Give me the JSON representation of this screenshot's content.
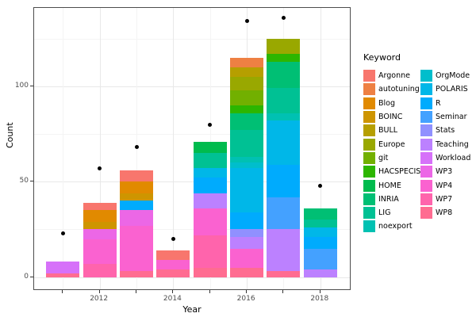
{
  "chart_data": {
    "type": "bar",
    "stacked": true,
    "xlabel": "Year",
    "ylabel": "Count",
    "legend_title": "Keyword",
    "legend_position": "right",
    "grid": true,
    "ylim": [
      0,
      145
    ],
    "y_ticks": [
      0,
      50,
      100
    ],
    "y_minor_ticks": [
      25,
      75,
      125
    ],
    "x_years": [
      2011,
      2012,
      2013,
      2014,
      2015,
      2016,
      2017,
      2018
    ],
    "x_labeled_years": [
      2012,
      2014,
      2016,
      2018
    ],
    "keywords": [
      {
        "name": "Argonne",
        "color": "#F8766D"
      },
      {
        "name": "autotuning",
        "color": "#EE8043"
      },
      {
        "name": "Blog",
        "color": "#E18A00"
      },
      {
        "name": "BOINC",
        "color": "#CE9500"
      },
      {
        "name": "BULL",
        "color": "#B69F00"
      },
      {
        "name": "Europe",
        "color": "#99A800"
      },
      {
        "name": "git",
        "color": "#72B000"
      },
      {
        "name": "HACSPECIS",
        "color": "#2CB600"
      },
      {
        "name": "HOME",
        "color": "#00BB4E"
      },
      {
        "name": "INRIA",
        "color": "#00BF74"
      },
      {
        "name": "LIG",
        "color": "#00C194"
      },
      {
        "name": "noexport",
        "color": "#00C1B2"
      },
      {
        "name": "OrgMode",
        "color": "#00BECC"
      },
      {
        "name": "POLARIS",
        "color": "#00B7E8"
      },
      {
        "name": "R",
        "color": "#00ABFD"
      },
      {
        "name": "Seminar",
        "color": "#44A1FF"
      },
      {
        "name": "Stats",
        "color": "#9090FF"
      },
      {
        "name": "Teaching",
        "color": "#BC81FF"
      },
      {
        "name": "Workload",
        "color": "#D671F9"
      },
      {
        "name": "WP3",
        "color": "#EC67E6"
      },
      {
        "name": "WP4",
        "color": "#FA62D0"
      },
      {
        "name": "WP7",
        "color": "#FF64AC"
      },
      {
        "name": "WP8",
        "color": "#FF6C91"
      }
    ],
    "legend_column_split": 12,
    "bars": [
      {
        "year": 2011,
        "total": 8,
        "segments": [
          {
            "keyword": "WP8",
            "value": 2
          },
          {
            "keyword": "Workload",
            "value": 6
          }
        ]
      },
      {
        "year": 2012,
        "total": 39,
        "segments": [
          {
            "keyword": "WP7",
            "value": 7
          },
          {
            "keyword": "WP4",
            "value": 13
          },
          {
            "keyword": "WP3",
            "value": 5
          },
          {
            "keyword": "BOINC",
            "value": 4
          },
          {
            "keyword": "Blog",
            "value": 6
          },
          {
            "keyword": "Argonne",
            "value": 4
          }
        ]
      },
      {
        "year": 2013,
        "total": 56,
        "segments": [
          {
            "keyword": "WP8",
            "value": 3
          },
          {
            "keyword": "WP4",
            "value": 24
          },
          {
            "keyword": "WP3",
            "value": 8
          },
          {
            "keyword": "R",
            "value": 5
          },
          {
            "keyword": "BOINC",
            "value": 4
          },
          {
            "keyword": "Blog",
            "value": 6
          },
          {
            "keyword": "Argonne",
            "value": 6
          }
        ]
      },
      {
        "year": 2014,
        "total": 14,
        "segments": [
          {
            "keyword": "WP8",
            "value": 4
          },
          {
            "keyword": "WP4",
            "value": 5
          },
          {
            "keyword": "Argonne",
            "value": 5
          }
        ]
      },
      {
        "year": 2015,
        "total": 71,
        "segments": [
          {
            "keyword": "WP8",
            "value": 5
          },
          {
            "keyword": "WP7",
            "value": 17
          },
          {
            "keyword": "WP4",
            "value": 14
          },
          {
            "keyword": "Teaching",
            "value": 8
          },
          {
            "keyword": "R",
            "value": 8
          },
          {
            "keyword": "POLARIS",
            "value": 5
          },
          {
            "keyword": "LIG",
            "value": 8
          },
          {
            "keyword": "HOME",
            "value": 6
          }
        ]
      },
      {
        "year": 2016,
        "total": 115,
        "segments": [
          {
            "keyword": "WP8",
            "value": 5
          },
          {
            "keyword": "WP4",
            "value": 10
          },
          {
            "keyword": "Teaching",
            "value": 6
          },
          {
            "keyword": "Stats",
            "value": 4
          },
          {
            "keyword": "R",
            "value": 9
          },
          {
            "keyword": "POLARIS",
            "value": 23
          },
          {
            "keyword": "OrgMode",
            "value": 3
          },
          {
            "keyword": "noexport",
            "value": 3
          },
          {
            "keyword": "LIG",
            "value": 14
          },
          {
            "keyword": "INRIA",
            "value": 9
          },
          {
            "keyword": "HACSPECIS",
            "value": 4
          },
          {
            "keyword": "git",
            "value": 8
          },
          {
            "keyword": "Europe",
            "value": 7
          },
          {
            "keyword": "BULL",
            "value": 5
          },
          {
            "keyword": "autotuning",
            "value": 5
          }
        ]
      },
      {
        "year": 2017,
        "total": 125,
        "segments": [
          {
            "keyword": "WP8",
            "value": 3
          },
          {
            "keyword": "Teaching",
            "value": 22
          },
          {
            "keyword": "Seminar",
            "value": 17
          },
          {
            "keyword": "R",
            "value": 17
          },
          {
            "keyword": "POLARIS",
            "value": 23
          },
          {
            "keyword": "noexport",
            "value": 4
          },
          {
            "keyword": "LIG",
            "value": 13
          },
          {
            "keyword": "INRIA",
            "value": 14
          },
          {
            "keyword": "HACSPECIS",
            "value": 4
          },
          {
            "keyword": "Europe",
            "value": 8
          }
        ]
      },
      {
        "year": 2018,
        "total": 36,
        "segments": [
          {
            "keyword": "Teaching",
            "value": 4
          },
          {
            "keyword": "Seminar",
            "value": 11
          },
          {
            "keyword": "R",
            "value": 6
          },
          {
            "keyword": "POLARIS",
            "value": 5
          },
          {
            "keyword": "LIG",
            "value": 4
          },
          {
            "keyword": "INRIA",
            "value": 6
          }
        ]
      }
    ],
    "points": [
      {
        "year": 2011,
        "value": 23
      },
      {
        "year": 2012,
        "value": 57
      },
      {
        "year": 2013,
        "value": 68
      },
      {
        "year": 2014,
        "value": 20
      },
      {
        "year": 2015,
        "value": 80
      },
      {
        "year": 2016,
        "value": 134
      },
      {
        "year": 2017,
        "value": 136
      },
      {
        "year": 2018,
        "value": 48
      }
    ],
    "point_color": "#000000"
  }
}
